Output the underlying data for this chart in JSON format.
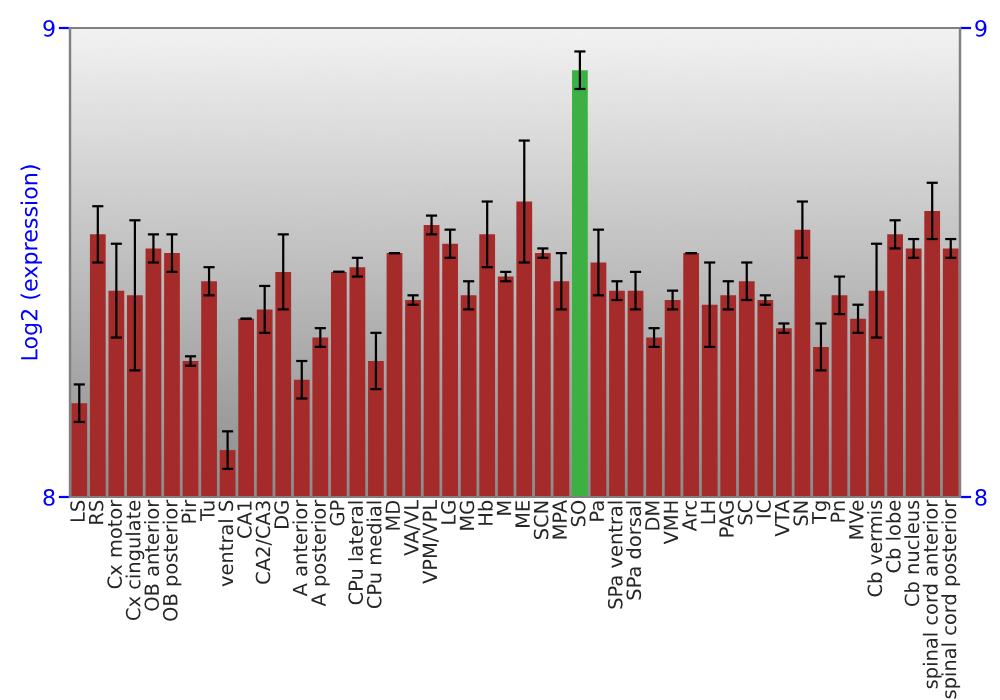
{
  "chart_data": {
    "type": "bar",
    "ylabel": "Log2 (expression)",
    "categories": [
      "LS",
      "RS",
      "Cx motor",
      "Cx cingulate",
      "OB anterior",
      "OB posterior",
      "Pir",
      "Tu",
      "ventral S",
      "CA1",
      "CA2/CA3",
      "DG",
      "A anterior",
      "A posterior",
      "GP",
      "CPu lateral",
      "CPu medial",
      "MD",
      "VA/VL",
      "VPM/VPL",
      "LG",
      "MG",
      "Hb",
      "M",
      "ME",
      "SCN",
      "MPA",
      "SO",
      "Pa",
      "SPa ventral",
      "SPa dorsal",
      "DM",
      "VMH",
      "Arc",
      "LH",
      "PAG",
      "SC",
      "IC",
      "VTA",
      "SN",
      "Tg",
      "Pn",
      "MVe",
      "Cb vermis",
      "Cb lobe",
      "Cb nucleus",
      "spinal cord anterior",
      "spinal cord posterior"
    ],
    "values": [
      8.2,
      8.56,
      8.44,
      8.43,
      8.53,
      8.52,
      8.29,
      8.46,
      8.1,
      8.38,
      8.4,
      8.48,
      8.25,
      8.34,
      8.48,
      8.49,
      8.29,
      8.52,
      8.42,
      8.58,
      8.54,
      8.43,
      8.56,
      8.47,
      8.63,
      8.52,
      8.46,
      8.91,
      8.5,
      8.44,
      8.44,
      8.34,
      8.42,
      8.52,
      8.41,
      8.43,
      8.46,
      8.42,
      8.36,
      8.57,
      8.32,
      8.43,
      8.38,
      8.44,
      8.56,
      8.53,
      8.61,
      8.53
    ],
    "errors": [
      0.04,
      0.06,
      0.1,
      0.16,
      0.03,
      0.04,
      0.01,
      0.03,
      0.04,
      0.0,
      0.05,
      0.08,
      0.04,
      0.02,
      0.0,
      0.02,
      0.06,
      0.0,
      0.01,
      0.02,
      0.03,
      0.03,
      0.07,
      0.01,
      0.13,
      0.01,
      0.06,
      0.04,
      0.07,
      0.02,
      0.04,
      0.02,
      0.02,
      0.0,
      0.09,
      0.03,
      0.04,
      0.01,
      0.01,
      0.06,
      0.05,
      0.04,
      0.03,
      0.1,
      0.03,
      0.02,
      0.06,
      0.02
    ],
    "colors": [
      "#a52a2a",
      "#a52a2a",
      "#a52a2a",
      "#a52a2a",
      "#a52a2a",
      "#a52a2a",
      "#a52a2a",
      "#a52a2a",
      "#a52a2a",
      "#a52a2a",
      "#a52a2a",
      "#a52a2a",
      "#a52a2a",
      "#a52a2a",
      "#a52a2a",
      "#a52a2a",
      "#a52a2a",
      "#a52a2a",
      "#a52a2a",
      "#a52a2a",
      "#a52a2a",
      "#a52a2a",
      "#a52a2a",
      "#a52a2a",
      "#a52a2a",
      "#a52a2a",
      "#a52a2a",
      "#3cb043",
      "#a52a2a",
      "#a52a2a",
      "#a52a2a",
      "#a52a2a",
      "#a52a2a",
      "#a52a2a",
      "#a52a2a",
      "#a52a2a",
      "#a52a2a",
      "#a52a2a",
      "#a52a2a",
      "#a52a2a",
      "#a52a2a",
      "#a52a2a",
      "#a52a2a",
      "#a52a2a",
      "#a52a2a",
      "#a52a2a",
      "#a52a2a",
      "#a52a2a"
    ],
    "ylim": [
      8,
      9
    ],
    "yticks": [
      8,
      9
    ],
    "y2lim": [
      8,
      9
    ],
    "y2ticks": [
      8,
      9
    ],
    "grid": false,
    "legend": false
  }
}
